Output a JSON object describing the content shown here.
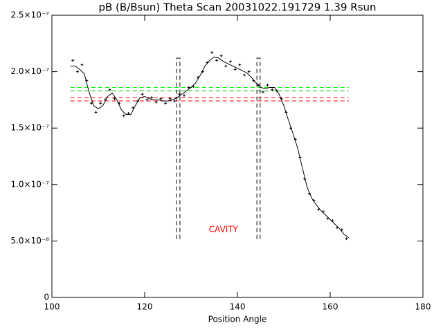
{
  "chart_data": {
    "type": "line",
    "title": "pB (B/Bsun) Theta Scan 20031022.191729 1.39 Rsun",
    "x_label": "Position Angle",
    "xlim": [
      100,
      180
    ],
    "xticks": [
      100,
      120,
      140,
      160,
      180
    ],
    "ylim": [
      0,
      2.5e-07
    ],
    "yticks": [
      0,
      {
        "value": 5e-08,
        "label": "5.0×10⁻⁸"
      },
      {
        "value": 1e-07,
        "label": "1.0×10⁻⁷"
      },
      {
        "value": 1.5e-07,
        "label": "1.5×10⁻⁷"
      },
      {
        "value": 2e-07,
        "label": "2.0×10⁻⁷"
      },
      {
        "value": 2.5e-07,
        "label": "2.5×10⁻⁷"
      }
    ],
    "series": [
      {
        "style": "line",
        "color": "#000000",
        "x": [
          104,
          105,
          106,
          107,
          108,
          109,
          110,
          111,
          112,
          113,
          114,
          115,
          116,
          117,
          118,
          119,
          120,
          121,
          122,
          123,
          124,
          125,
          126,
          127,
          128,
          129,
          130,
          131,
          132,
          133,
          134,
          135,
          136,
          137,
          138,
          139,
          140,
          141,
          142,
          143,
          144,
          145,
          146,
          147,
          148,
          149,
          150,
          151,
          152,
          153,
          154,
          155,
          156,
          157,
          158,
          159,
          160,
          161,
          162,
          163,
          164
        ],
        "values": [
          2.05e-07,
          2.05e-07,
          2.02e-07,
          1.98e-07,
          1.82e-07,
          1.7e-07,
          1.67e-07,
          1.7e-07,
          1.78e-07,
          1.81e-07,
          1.75e-07,
          1.66e-07,
          1.62e-07,
          1.62e-07,
          1.7e-07,
          1.77e-07,
          1.78e-07,
          1.76e-07,
          1.75e-07,
          1.75e-07,
          1.74e-07,
          1.74e-07,
          1.75e-07,
          1.77e-07,
          1.8e-07,
          1.83e-07,
          1.86e-07,
          1.9e-07,
          1.97e-07,
          2.05e-07,
          2.1e-07,
          2.13e-07,
          2.12e-07,
          2.09e-07,
          2.07e-07,
          2.05e-07,
          2.03e-07,
          2.01e-07,
          1.99e-07,
          1.95e-07,
          1.9e-07,
          1.86e-07,
          1.85e-07,
          1.86e-07,
          1.86e-07,
          1.8e-07,
          1.7e-07,
          1.57e-07,
          1.45e-07,
          1.32e-07,
          1.15e-07,
          9.8e-08,
          8.8e-08,
          8.2e-08,
          7.7e-08,
          7.3e-08,
          6.9e-08,
          6.5e-08,
          6.1e-08,
          5.6e-08,
          5.3e-08
        ]
      },
      {
        "style": "plus",
        "color": "#000000",
        "x": [
          104.5,
          105.5,
          106.5,
          107.5,
          108.5,
          109.5,
          110.5,
          111.5,
          112.5,
          113.5,
          114.5,
          115.5,
          116.5,
          117.5,
          118.5,
          119.5,
          120.5,
          121.5,
          122.5,
          123.5,
          124.5,
          125.5,
          126.5,
          127.5,
          128.5,
          129.5,
          130.5,
          131.5,
          132.5,
          133.5,
          134.5,
          135.5,
          136.5,
          137.5,
          138.5,
          139.5,
          140.5,
          141.5,
          142.5,
          143.5,
          144.5,
          145.5,
          146.5,
          147.5,
          148.5,
          149.5,
          150.5,
          151.5,
          152.5,
          153.5,
          154.5,
          155.5,
          156.5,
          157.5,
          158.5,
          159.5,
          160.5,
          161.5,
          162.5,
          163.5
        ],
        "values": [
          2.1e-07,
          2e-07,
          2.06e-07,
          1.92e-07,
          1.72e-07,
          1.64e-07,
          1.72e-07,
          1.75e-07,
          1.84e-07,
          1.76e-07,
          1.72e-07,
          1.61e-07,
          1.63e-07,
          1.68e-07,
          1.74e-07,
          1.8e-07,
          1.75e-07,
          1.77e-07,
          1.73e-07,
          1.76e-07,
          1.72e-07,
          1.76e-07,
          1.74e-07,
          1.8e-07,
          1.79e-07,
          1.86e-07,
          1.87e-07,
          1.95e-07,
          2e-07,
          2.08e-07,
          2.17e-07,
          2.1e-07,
          2.14e-07,
          2.05e-07,
          2.09e-07,
          2.02e-07,
          2.06e-07,
          1.97e-07,
          2e-07,
          1.92e-07,
          1.88e-07,
          1.82e-07,
          1.88e-07,
          1.84e-07,
          1.83e-07,
          1.76e-07,
          1.64e-07,
          1.5e-07,
          1.4e-07,
          1.24e-07,
          1.05e-07,
          9.2e-08,
          8.6e-08,
          7.8e-08,
          7.6e-08,
          7e-08,
          6.8e-08,
          6.2e-08,
          6e-08,
          5.2e-08
        ]
      }
    ],
    "reference_lines": [
      {
        "x": [
          104,
          164
        ],
        "value": 1.86e-07,
        "color": "#00ff00"
      },
      {
        "x": [
          104,
          164
        ],
        "value": 1.83e-07,
        "color": "#00aa00"
      },
      {
        "x": [
          104,
          164
        ],
        "value": 1.77e-07,
        "color": "#ff0000"
      },
      {
        "x": [
          104,
          164
        ],
        "value": 1.74e-07,
        "color": "#ff0000"
      }
    ],
    "regions": [
      {
        "x": [
          126.9,
          127.6
        ],
        "y": [
          5.2e-08,
          2.12e-07
        ]
      },
      {
        "x": [
          144.2,
          144.9
        ],
        "y": [
          5.2e-08,
          2.12e-07
        ]
      }
    ],
    "annotation": {
      "text": "CAVITY",
      "x": 137,
      "y": 6e-08,
      "color": "#ff0000"
    }
  }
}
